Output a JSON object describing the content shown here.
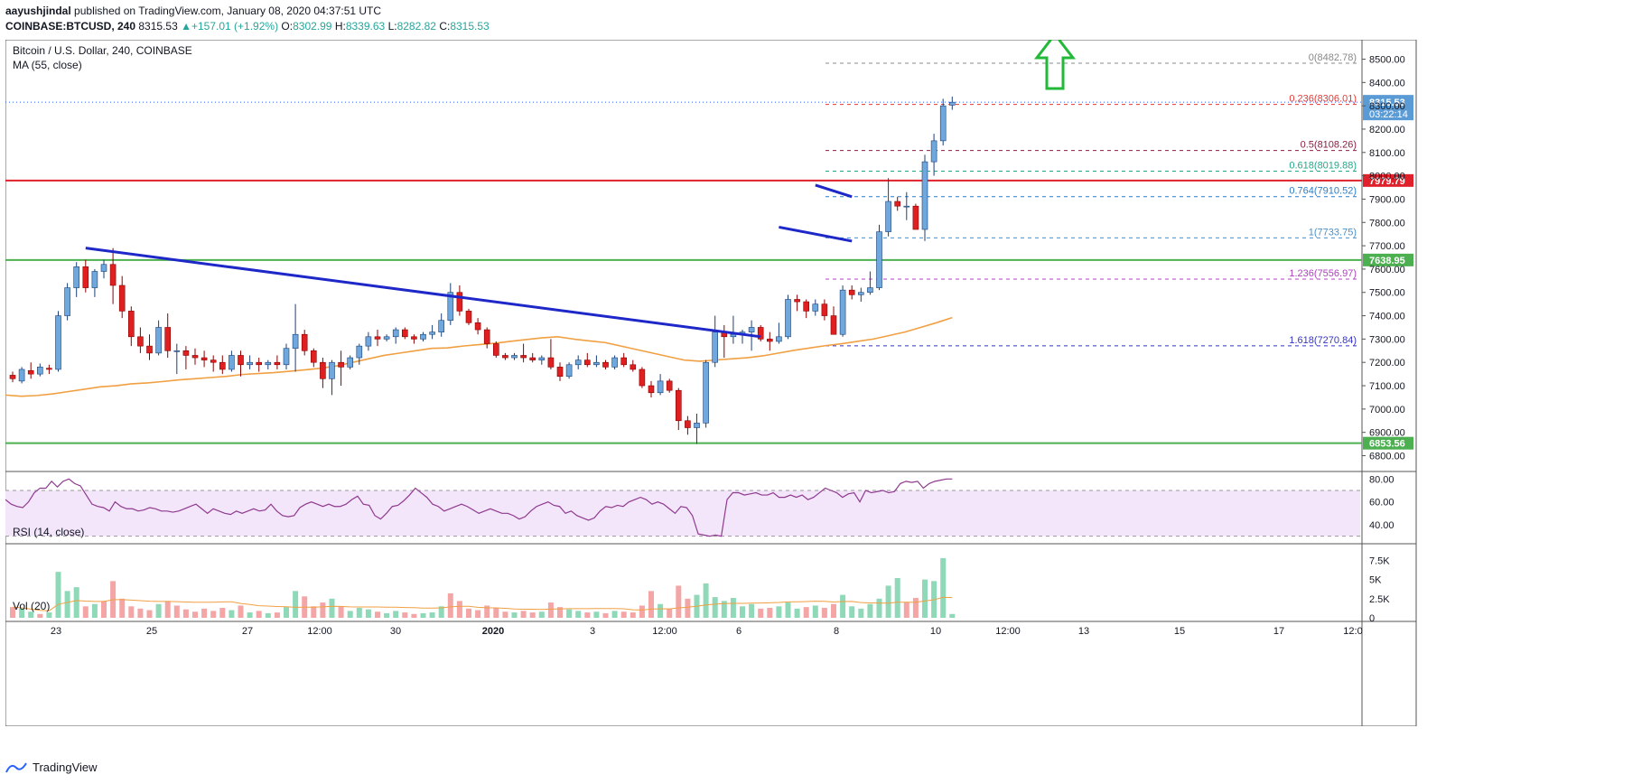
{
  "header": {
    "author": "aayushjindal",
    "published": "published on TradingView.com, January 08, 2020 04:37:51 UTC",
    "symbol": "COINBASE:BTCUSD, 240",
    "last": "8315.53",
    "change": "+157.01 (+1.92%)",
    "o": "8302.99",
    "h": "8339.63",
    "l": "8282.82",
    "c": "8315.53"
  },
  "footer": {
    "brand": "TradingView"
  },
  "chart_data": {
    "type": "candlestick",
    "title": "Bitcoin / U.S. Dollar, 240, COINBASE",
    "ma_label": "MA (55, close)",
    "rsi_label": "RSI (14, close)",
    "vol_label": "Vol (20)",
    "colors": {
      "up": "#6fa8dc",
      "up_border": "#1c3f78",
      "down": "#e02020",
      "ma": "#f0a042",
      "trend": "#1e28c8",
      "rsi": "#8e3a8e",
      "vol_up": "#8fd8b8",
      "vol_down": "#f4a6a6"
    },
    "price_axis": {
      "min": 6740,
      "max": 8560,
      "ticks": [
        "6800.00",
        "6900.00",
        "7000.00",
        "7100.00",
        "7200.00",
        "7300.00",
        "7400.00",
        "7500.00",
        "7600.00",
        "7700.00",
        "7800.00",
        "7900.00",
        "8000.00",
        "8100.00",
        "8200.00",
        "8300.00",
        "8400.00",
        "8500.00"
      ]
    },
    "rsi_axis": {
      "min": 25,
      "max": 85,
      "ticks": [
        "40.00",
        "60.00",
        "80.00"
      ],
      "band": [
        30,
        70
      ]
    },
    "vol_axis": {
      "max": 8500,
      "ticks": [
        "0",
        "2.5K",
        "5K",
        "7.5K"
      ]
    },
    "x_labels": [
      "23",
      "25",
      "27",
      "12:00",
      "30",
      "2020",
      "3",
      "12:00",
      "6",
      "8",
      "10",
      "12:00",
      "13",
      "15",
      "17",
      "12:0"
    ],
    "levels": [
      {
        "name": "horizontal-resistance",
        "price": 7979.79,
        "label": "7979.79",
        "color": "#e0202a"
      },
      {
        "name": "support-upper",
        "price": 7638.95,
        "label": "7638.95",
        "color": "#4caf50"
      },
      {
        "name": "support-lower",
        "price": 6853.56,
        "label": "6853.56",
        "color": "#4caf50"
      }
    ],
    "last_price": {
      "value": 8315.53,
      "label": "8315.53",
      "countdown": "03:22:14"
    },
    "fib": [
      {
        "ratio": "0",
        "price": 8482.78,
        "text": "0(8482.78)",
        "color": "#888888"
      },
      {
        "ratio": "0.236",
        "price": 8306.01,
        "text": "0.236(8306.01)",
        "color": "#e53935"
      },
      {
        "ratio": "0.5",
        "price": 8108.26,
        "text": "0.5(8108.26)",
        "color": "#8b1e3f"
      },
      {
        "ratio": "0.618",
        "price": 8019.88,
        "text": "0.618(8019.88)",
        "color": "#1faa8c"
      },
      {
        "ratio": "0.764",
        "price": 7910.52,
        "text": "0.764(7910.52)",
        "color": "#2a7dc9"
      },
      {
        "ratio": "1",
        "price": 7733.75,
        "text": "1(7733.75)",
        "color": "#4a90c8"
      },
      {
        "ratio": "1.236",
        "price": 7556.97,
        "text": "1.236(7556.97)",
        "color": "#b040c0"
      },
      {
        "ratio": "1.618",
        "price": 7270.84,
        "text": "1.618(7270.84)",
        "color": "#3535c8"
      }
    ],
    "candles": [
      [
        7145,
        7160,
        7115,
        7130
      ],
      [
        7120,
        7180,
        7110,
        7170
      ],
      [
        7165,
        7200,
        7130,
        7150
      ],
      [
        7150,
        7195,
        7140,
        7180
      ],
      [
        7175,
        7190,
        7150,
        7170
      ],
      [
        7170,
        7420,
        7160,
        7400
      ],
      [
        7400,
        7540,
        7380,
        7520
      ],
      [
        7520,
        7630,
        7480,
        7610
      ],
      [
        7610,
        7640,
        7500,
        7520
      ],
      [
        7520,
        7600,
        7480,
        7590
      ],
      [
        7590,
        7640,
        7560,
        7620
      ],
      [
        7620,
        7690,
        7450,
        7530
      ],
      [
        7530,
        7570,
        7390,
        7420
      ],
      [
        7420,
        7440,
        7270,
        7310
      ],
      [
        7310,
        7350,
        7240,
        7270
      ],
      [
        7270,
        7320,
        7210,
        7240
      ],
      [
        7240,
        7380,
        7230,
        7350
      ],
      [
        7350,
        7410,
        7220,
        7250
      ],
      [
        7250,
        7280,
        7150,
        7250
      ],
      [
        7250,
        7270,
        7170,
        7230
      ],
      [
        7230,
        7260,
        7190,
        7220
      ],
      [
        7220,
        7250,
        7180,
        7210
      ],
      [
        7210,
        7230,
        7160,
        7200
      ],
      [
        7200,
        7230,
        7150,
        7170
      ],
      [
        7170,
        7250,
        7160,
        7230
      ],
      [
        7230,
        7250,
        7140,
        7190
      ],
      [
        7190,
        7230,
        7170,
        7200
      ],
      [
        7200,
        7220,
        7160,
        7190
      ],
      [
        7190,
        7210,
        7170,
        7200
      ],
      [
        7200,
        7230,
        7170,
        7190
      ],
      [
        7190,
        7280,
        7170,
        7260
      ],
      [
        7260,
        7450,
        7160,
        7320
      ],
      [
        7320,
        7340,
        7230,
        7250
      ],
      [
        7250,
        7260,
        7180,
        7200
      ],
      [
        7200,
        7220,
        7090,
        7130
      ],
      [
        7130,
        7210,
        7060,
        7200
      ],
      [
        7200,
        7250,
        7100,
        7180
      ],
      [
        7180,
        7230,
        7170,
        7220
      ],
      [
        7220,
        7280,
        7190,
        7270
      ],
      [
        7270,
        7330,
        7250,
        7310
      ],
      [
        7310,
        7340,
        7270,
        7300
      ],
      [
        7300,
        7320,
        7290,
        7310
      ],
      [
        7310,
        7350,
        7280,
        7340
      ],
      [
        7340,
        7350,
        7300,
        7310
      ],
      [
        7310,
        7320,
        7280,
        7300
      ],
      [
        7300,
        7330,
        7290,
        7320
      ],
      [
        7320,
        7360,
        7300,
        7330
      ],
      [
        7330,
        7410,
        7310,
        7380
      ],
      [
        7380,
        7540,
        7360,
        7500
      ],
      [
        7500,
        7530,
        7400,
        7420
      ],
      [
        7420,
        7430,
        7360,
        7370
      ],
      [
        7370,
        7390,
        7320,
        7340
      ],
      [
        7340,
        7350,
        7260,
        7280
      ],
      [
        7280,
        7290,
        7220,
        7230
      ],
      [
        7230,
        7240,
        7210,
        7220
      ],
      [
        7220,
        7240,
        7210,
        7230
      ],
      [
        7230,
        7280,
        7200,
        7220
      ],
      [
        7220,
        7240,
        7200,
        7210
      ],
      [
        7210,
        7230,
        7190,
        7220
      ],
      [
        7220,
        7300,
        7170,
        7180
      ],
      [
        7180,
        7200,
        7120,
        7140
      ],
      [
        7140,
        7200,
        7130,
        7190
      ],
      [
        7190,
        7230,
        7170,
        7210
      ],
      [
        7210,
        7240,
        7180,
        7190
      ],
      [
        7190,
        7230,
        7180,
        7200
      ],
      [
        7200,
        7210,
        7170,
        7180
      ],
      [
        7180,
        7230,
        7170,
        7220
      ],
      [
        7220,
        7240,
        7180,
        7190
      ],
      [
        7190,
        7210,
        7160,
        7170
      ],
      [
        7170,
        7180,
        7090,
        7100
      ],
      [
        7100,
        7120,
        7050,
        7070
      ],
      [
        7070,
        7150,
        7060,
        7120
      ],
      [
        7120,
        7130,
        7070,
        7080
      ],
      [
        7080,
        7090,
        6910,
        6950
      ],
      [
        6950,
        6970,
        6890,
        6920
      ],
      [
        6920,
        6980,
        6850,
        6940
      ],
      [
        6940,
        7210,
        6920,
        7200
      ],
      [
        7200,
        7400,
        7180,
        7330
      ],
      [
        7330,
        7360,
        7220,
        7310
      ],
      [
        7310,
        7400,
        7280,
        7320
      ],
      [
        7320,
        7340,
        7280,
        7330
      ],
      [
        7330,
        7380,
        7250,
        7350
      ],
      [
        7350,
        7360,
        7290,
        7300
      ],
      [
        7300,
        7330,
        7250,
        7290
      ],
      [
        7290,
        7370,
        7280,
        7310
      ],
      [
        7310,
        7490,
        7300,
        7470
      ],
      [
        7470,
        7490,
        7420,
        7460
      ],
      [
        7460,
        7470,
        7390,
        7420
      ],
      [
        7420,
        7470,
        7400,
        7450
      ],
      [
        7450,
        7470,
        7380,
        7400
      ],
      [
        7400,
        7440,
        7330,
        7320
      ],
      [
        7320,
        7530,
        7310,
        7510
      ],
      [
        7510,
        7530,
        7470,
        7490
      ],
      [
        7490,
        7520,
        7460,
        7500
      ],
      [
        7500,
        7590,
        7490,
        7520
      ],
      [
        7520,
        7790,
        7510,
        7760
      ],
      [
        7760,
        7990,
        7740,
        7890
      ],
      [
        7890,
        7910,
        7850,
        7870
      ],
      [
        7870,
        7930,
        7810,
        7870
      ],
      [
        7870,
        7880,
        7770,
        7770
      ],
      [
        7770,
        8090,
        7720,
        8060
      ],
      [
        8060,
        8180,
        8000,
        8150
      ],
      [
        8150,
        8330,
        8130,
        8300
      ],
      [
        8302.99,
        8339.63,
        8282.82,
        8315.53
      ]
    ],
    "volumes": [
      [
        1400,
        "down"
      ],
      [
        1200,
        "up"
      ],
      [
        800,
        "up"
      ],
      [
        500,
        "down"
      ],
      [
        700,
        "up"
      ],
      [
        6000,
        "up"
      ],
      [
        3500,
        "up"
      ],
      [
        4000,
        "up"
      ],
      [
        1500,
        "down"
      ],
      [
        1800,
        "up"
      ],
      [
        2200,
        "down"
      ],
      [
        4800,
        "down"
      ],
      [
        2500,
        "down"
      ],
      [
        1500,
        "down"
      ],
      [
        1200,
        "down"
      ],
      [
        1000,
        "down"
      ],
      [
        1800,
        "up"
      ],
      [
        2200,
        "down"
      ],
      [
        1600,
        "down"
      ],
      [
        1100,
        "down"
      ],
      [
        800,
        "down"
      ],
      [
        1200,
        "down"
      ],
      [
        900,
        "down"
      ],
      [
        1300,
        "down"
      ],
      [
        1000,
        "up"
      ],
      [
        1600,
        "down"
      ],
      [
        700,
        "up"
      ],
      [
        900,
        "down"
      ],
      [
        600,
        "up"
      ],
      [
        700,
        "down"
      ],
      [
        1400,
        "up"
      ],
      [
        3500,
        "up"
      ],
      [
        2800,
        "down"
      ],
      [
        1500,
        "down"
      ],
      [
        2000,
        "down"
      ],
      [
        2500,
        "up"
      ],
      [
        1500,
        "down"
      ],
      [
        900,
        "up"
      ],
      [
        1300,
        "up"
      ],
      [
        1100,
        "up"
      ],
      [
        800,
        "down"
      ],
      [
        600,
        "up"
      ],
      [
        900,
        "up"
      ],
      [
        700,
        "down"
      ],
      [
        500,
        "down"
      ],
      [
        600,
        "up"
      ],
      [
        700,
        "up"
      ],
      [
        1500,
        "up"
      ],
      [
        3200,
        "down"
      ],
      [
        2200,
        "down"
      ],
      [
        1200,
        "down"
      ],
      [
        1000,
        "down"
      ],
      [
        1600,
        "down"
      ],
      [
        1300,
        "down"
      ],
      [
        800,
        "down"
      ],
      [
        700,
        "up"
      ],
      [
        900,
        "down"
      ],
      [
        700,
        "down"
      ],
      [
        800,
        "up"
      ],
      [
        2000,
        "down"
      ],
      [
        1400,
        "down"
      ],
      [
        1100,
        "up"
      ],
      [
        900,
        "up"
      ],
      [
        700,
        "down"
      ],
      [
        800,
        "up"
      ],
      [
        600,
        "down"
      ],
      [
        900,
        "up"
      ],
      [
        800,
        "down"
      ],
      [
        700,
        "down"
      ],
      [
        1600,
        "down"
      ],
      [
        3500,
        "down"
      ],
      [
        1800,
        "up"
      ],
      [
        1200,
        "down"
      ],
      [
        4200,
        "down"
      ],
      [
        2500,
        "down"
      ],
      [
        3000,
        "up"
      ],
      [
        4500,
        "up"
      ],
      [
        2700,
        "up"
      ],
      [
        2200,
        "up"
      ],
      [
        2600,
        "up"
      ],
      [
        1500,
        "up"
      ],
      [
        1800,
        "up"
      ],
      [
        1200,
        "down"
      ],
      [
        1300,
        "down"
      ],
      [
        1500,
        "up"
      ],
      [
        2000,
        "up"
      ],
      [
        1200,
        "up"
      ],
      [
        1400,
        "down"
      ],
      [
        1600,
        "up"
      ],
      [
        1300,
        "down"
      ],
      [
        1800,
        "down"
      ],
      [
        3000,
        "up"
      ],
      [
        1500,
        "up"
      ],
      [
        1200,
        "up"
      ],
      [
        1800,
        "up"
      ],
      [
        2500,
        "up"
      ],
      [
        4200,
        "up"
      ],
      [
        5200,
        "up"
      ],
      [
        2000,
        "down"
      ],
      [
        2600,
        "down"
      ],
      [
        5000,
        "up"
      ],
      [
        4800,
        "up"
      ],
      [
        7800,
        "up"
      ],
      [
        500,
        "up"
      ]
    ],
    "ma55": [
      7060,
      7055,
      7058,
      7065,
      7075,
      7085,
      7095,
      7100,
      7108,
      7112,
      7118,
      7125,
      7130,
      7135,
      7140,
      7148,
      7152,
      7156,
      7162,
      7168,
      7175,
      7185,
      7200,
      7215,
      7230,
      7240,
      7250,
      7260,
      7262,
      7270,
      7276,
      7282,
      7290,
      7298,
      7305,
      7310,
      7300,
      7292,
      7285,
      7270,
      7255,
      7240,
      7225,
      7210,
      7205,
      7210,
      7215,
      7220,
      7228,
      7240,
      7252,
      7262,
      7272,
      7280,
      7290,
      7300,
      7315,
      7330,
      7350,
      7370,
      7392
    ],
    "rsi": [
      62,
      58,
      56,
      55,
      60,
      68,
      72,
      72,
      78,
      73,
      78,
      80,
      76,
      74,
      66,
      58,
      56,
      55,
      52,
      60,
      56,
      54,
      54,
      52,
      53,
      55,
      54,
      52,
      52,
      51,
      52,
      54,
      56,
      58,
      54,
      50,
      54,
      52,
      50,
      49,
      52,
      50,
      52,
      54,
      52,
      53,
      58,
      52,
      48,
      47,
      48,
      55,
      58,
      60,
      58,
      56,
      58,
      56,
      56,
      58,
      62,
      65,
      58,
      57,
      48,
      45,
      50,
      56,
      57,
      61,
      66,
      72,
      68,
      64,
      58,
      56,
      52,
      54,
      56,
      58,
      56,
      53,
      50,
      52,
      54,
      52,
      50,
      50,
      48,
      45,
      47,
      52,
      56,
      58,
      60,
      57,
      56,
      50,
      52,
      48,
      46,
      44,
      46,
      52,
      56,
      55,
      57,
      56,
      60,
      62,
      64,
      62,
      58,
      60,
      58,
      54,
      50,
      56,
      55,
      48,
      32,
      31,
      30,
      31,
      30,
      62,
      68,
      68,
      66,
      67,
      68,
      66,
      66,
      68,
      64,
      64,
      66,
      64,
      66,
      62,
      64,
      68,
      72,
      70,
      68,
      64,
      67,
      68,
      60,
      70,
      68,
      69,
      70,
      68,
      69,
      76,
      78,
      77,
      78,
      72,
      76,
      78,
      79,
      80,
      80
    ],
    "trendlines": [
      {
        "name": "main-bearish-trendline",
        "from": [
          8,
          7690
        ],
        "to": [
          82,
          7310
        ]
      },
      {
        "name": "flag-upper-line",
        "from": [
          88,
          7960
        ],
        "to": [
          92,
          7910
        ]
      },
      {
        "name": "flag-lower-line",
        "from": [
          84,
          7780
        ],
        "to": [
          92,
          7720
        ]
      }
    ]
  }
}
